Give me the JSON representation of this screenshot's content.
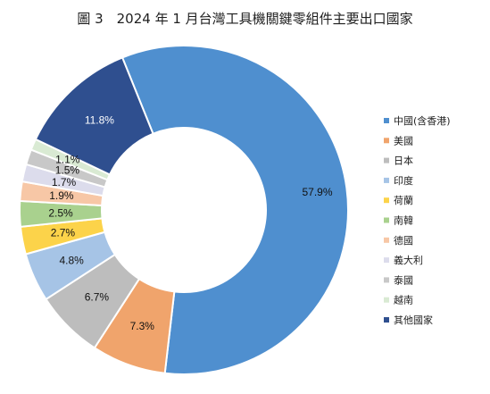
{
  "chart_data": {
    "type": "pie",
    "title": "圖 3　2024 年 1 月台灣工具機關鍵零組件主要出口國家",
    "legend_position": "right",
    "donut": true,
    "series": [
      {
        "name": "中國(含香港)",
        "value": 57.9,
        "label": "57.9%",
        "color": "#4f8fcf"
      },
      {
        "name": "美國",
        "value": 7.3,
        "label": "7.3%",
        "color": "#f0a46c"
      },
      {
        "name": "日本",
        "value": 6.7,
        "label": "6.7%",
        "color": "#bdbdbd"
      },
      {
        "name": "印度",
        "value": 4.8,
        "label": "4.8%",
        "color": "#a6c4e6"
      },
      {
        "name": "荷蘭",
        "value": 2.7,
        "label": "2.7%",
        "color": "#fcd34a"
      },
      {
        "name": "南韓",
        "value": 2.5,
        "label": "2.5%",
        "color": "#a9d18e"
      },
      {
        "name": "德國",
        "value": 1.9,
        "label": "1.9%",
        "color": "#f7c7a6"
      },
      {
        "name": "義大利",
        "value": 1.7,
        "label": "1.7%",
        "color": "#dcdcec"
      },
      {
        "name": "泰國",
        "value": 1.5,
        "label": "1.5%",
        "color": "#c8c8c8"
      },
      {
        "name": "越南",
        "value": 1.1,
        "label": "1.1%",
        "color": "#d9ead3"
      },
      {
        "name": "其他國家",
        "value": 11.8,
        "label": "11.8%",
        "color": "#2f4f8f"
      }
    ]
  }
}
